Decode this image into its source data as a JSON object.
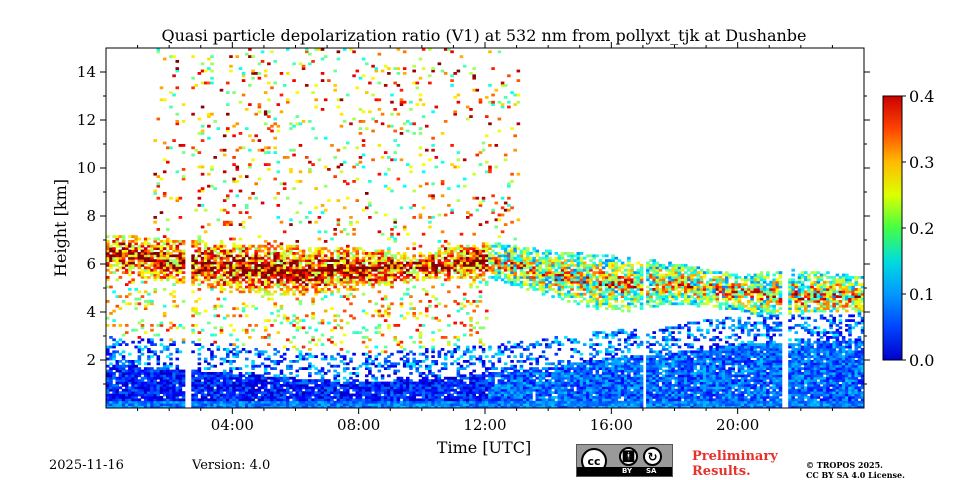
{
  "chart_data": {
    "type": "heatmap",
    "title": "Quasi particle depolarization ratio (V1) at 532 nm from pollyxt_tjk at Dushanbe",
    "xlabel": "Time [UTC]",
    "ylabel": "Height [km]",
    "xlim": [
      0,
      24
    ],
    "ylim": [
      0,
      15
    ],
    "x_ticks": [
      4,
      8,
      12,
      16,
      20
    ],
    "x_tick_labels": [
      "04:00",
      "08:00",
      "12:00",
      "16:00",
      "20:00"
    ],
    "y_ticks": [
      2,
      4,
      6,
      8,
      10,
      12,
      14
    ],
    "y_tick_labels": [
      "2",
      "4",
      "6",
      "8",
      "10",
      "12",
      "14"
    ],
    "colorbar": {
      "min": 0.0,
      "max": 0.4,
      "ticks": [
        0.0,
        0.1,
        0.2,
        0.3,
        0.4
      ],
      "tick_labels": [
        "0.0",
        "0.1",
        "0.2",
        "0.3",
        "0.4"
      ],
      "colormap": "jet"
    },
    "data_gaps_hours": [
      [
        2.55,
        2.7
      ],
      [
        16.95,
        17.1
      ],
      [
        21.45,
        21.65
      ]
    ],
    "layers": [
      {
        "name": "dust-layer",
        "times": [
          0,
          2,
          4,
          6,
          8,
          10,
          12,
          14,
          16,
          18,
          20,
          22,
          24
        ],
        "height_top_km": [
          7.2,
          7.0,
          6.8,
          6.7,
          6.6,
          6.4,
          6.9,
          6.5,
          6.3,
          6.0,
          5.5,
          5.8,
          5.4
        ],
        "height_bottom_km": [
          5.6,
          5.2,
          4.8,
          4.6,
          4.9,
          5.3,
          5.4,
          4.6,
          3.9,
          4.3,
          4.0,
          3.5,
          3.8
        ],
        "typical_value": 0.28
      },
      {
        "name": "boundary-layer",
        "times": [
          0,
          4,
          8,
          12,
          16,
          20,
          24
        ],
        "height_top_km": [
          1.8,
          1.4,
          1.0,
          1.4,
          2.0,
          2.6,
          2.8
        ],
        "typical_value": 0.05
      }
    ]
  },
  "footer": {
    "date": "2025-11-16",
    "version": "Version: 4.0",
    "license_badge": {
      "cc": "cc",
      "by": "BY",
      "sa": "SA"
    },
    "preliminary_line1": "Preliminary",
    "preliminary_line2": "Results.",
    "copyright_line1": "© TROPOS 2025.",
    "copyright_line2": "CC BY SA 4.0 License."
  }
}
